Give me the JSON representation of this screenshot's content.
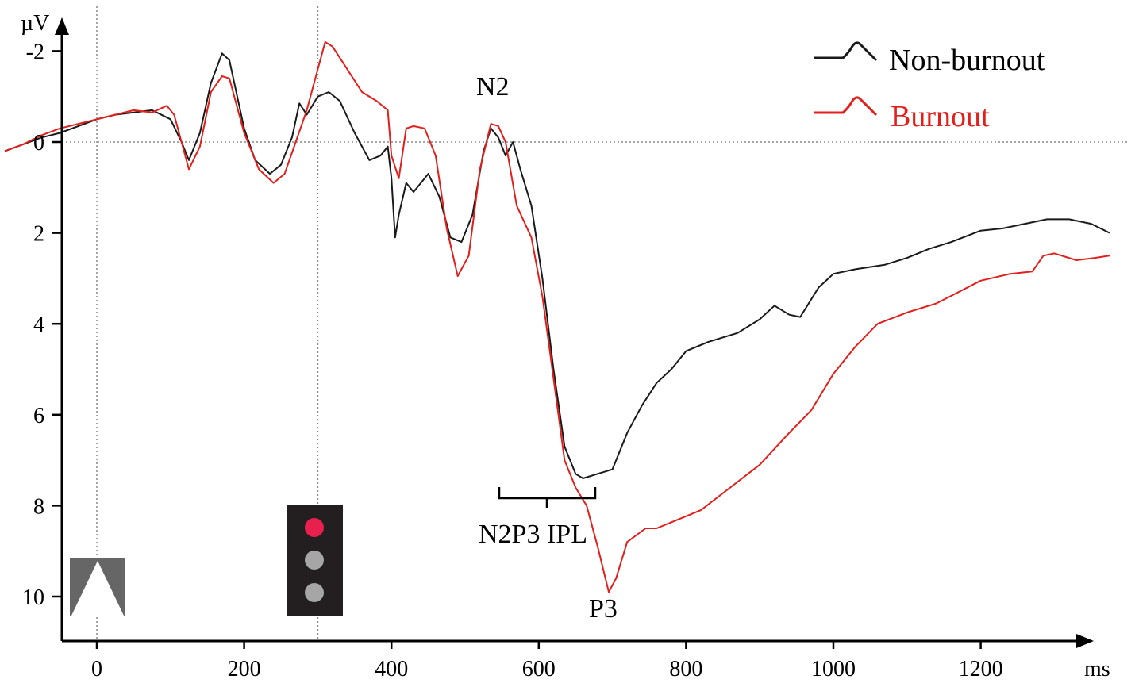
{
  "chart_data": {
    "type": "line",
    "xlabel": "ms",
    "ylabel": "µV",
    "x_ticks": [
      0,
      200,
      400,
      600,
      800,
      1000,
      1200
    ],
    "y_ticks": [
      -2,
      0,
      2,
      4,
      6,
      8,
      10
    ],
    "y_tick_labels": [
      "-2",
      "0",
      "2",
      "4",
      "6",
      "8",
      "10"
    ],
    "xlim": [
      -125,
      1375
    ],
    "ylim": [
      -2.7,
      11.2
    ],
    "y_inverted": true,
    "reference_lines": [
      {
        "axis": "x",
        "value": 0
      },
      {
        "axis": "x",
        "value": 300
      },
      {
        "axis": "y",
        "value": 0
      }
    ],
    "legend": {
      "position": "top-right"
    },
    "series": [
      {
        "name": "Non-burnout",
        "color": "#1a1a1a",
        "points": [
          [
            -125,
            0.2
          ],
          [
            -100,
            0.05
          ],
          [
            -75,
            -0.1
          ],
          [
            -50,
            -0.2
          ],
          [
            -25,
            -0.35
          ],
          [
            0,
            -0.5
          ],
          [
            25,
            -0.6
          ],
          [
            50,
            -0.65
          ],
          [
            75,
            -0.7
          ],
          [
            100,
            -0.5
          ],
          [
            115,
            0
          ],
          [
            125,
            0.4
          ],
          [
            140,
            -0.2
          ],
          [
            155,
            -1.3
          ],
          [
            170,
            -1.95
          ],
          [
            180,
            -1.8
          ],
          [
            200,
            -0.3
          ],
          [
            215,
            0.4
          ],
          [
            235,
            0.7
          ],
          [
            250,
            0.5
          ],
          [
            265,
            -0.1
          ],
          [
            275,
            -0.85
          ],
          [
            285,
            -0.6
          ],
          [
            300,
            -1.0
          ],
          [
            315,
            -1.1
          ],
          [
            330,
            -0.9
          ],
          [
            350,
            -0.2
          ],
          [
            370,
            0.4
          ],
          [
            385,
            0.3
          ],
          [
            395,
            0.1
          ],
          [
            400,
            0.8
          ],
          [
            405,
            2.1
          ],
          [
            410,
            1.6
          ],
          [
            420,
            0.9
          ],
          [
            430,
            1.1
          ],
          [
            440,
            0.9
          ],
          [
            450,
            0.7
          ],
          [
            465,
            1.2
          ],
          [
            480,
            2.1
          ],
          [
            495,
            2.2
          ],
          [
            510,
            1.6
          ],
          [
            525,
            0.2
          ],
          [
            535,
            -0.3
          ],
          [
            545,
            -0.1
          ],
          [
            555,
            0.3
          ],
          [
            565,
            0
          ],
          [
            575,
            0.6
          ],
          [
            590,
            1.4
          ],
          [
            605,
            3.0
          ],
          [
            620,
            5.0
          ],
          [
            635,
            6.7
          ],
          [
            650,
            7.3
          ],
          [
            660,
            7.4
          ],
          [
            680,
            7.3
          ],
          [
            700,
            7.2
          ],
          [
            720,
            6.4
          ],
          [
            740,
            5.8
          ],
          [
            760,
            5.3
          ],
          [
            780,
            5.0
          ],
          [
            800,
            4.6
          ],
          [
            830,
            4.4
          ],
          [
            870,
            4.2
          ],
          [
            900,
            3.9
          ],
          [
            920,
            3.6
          ],
          [
            940,
            3.8
          ],
          [
            955,
            3.85
          ],
          [
            980,
            3.2
          ],
          [
            1000,
            2.9
          ],
          [
            1030,
            2.8
          ],
          [
            1070,
            2.7
          ],
          [
            1100,
            2.55
          ],
          [
            1130,
            2.35
          ],
          [
            1160,
            2.2
          ],
          [
            1200,
            1.95
          ],
          [
            1230,
            1.9
          ],
          [
            1260,
            1.8
          ],
          [
            1290,
            1.7
          ],
          [
            1320,
            1.7
          ],
          [
            1350,
            1.8
          ],
          [
            1375,
            2.0
          ]
        ]
      },
      {
        "name": "Burnout",
        "color": "#e0201c",
        "points": [
          [
            -125,
            0.2
          ],
          [
            -100,
            0.05
          ],
          [
            -75,
            -0.15
          ],
          [
            -50,
            -0.3
          ],
          [
            -25,
            -0.4
          ],
          [
            0,
            -0.5
          ],
          [
            25,
            -0.6
          ],
          [
            50,
            -0.7
          ],
          [
            75,
            -0.65
          ],
          [
            95,
            -0.8
          ],
          [
            105,
            -0.6
          ],
          [
            115,
            0
          ],
          [
            125,
            0.6
          ],
          [
            140,
            0.1
          ],
          [
            155,
            -1.1
          ],
          [
            170,
            -1.45
          ],
          [
            180,
            -1.4
          ],
          [
            200,
            -0.2
          ],
          [
            220,
            0.6
          ],
          [
            240,
            0.9
          ],
          [
            255,
            0.7
          ],
          [
            270,
            0
          ],
          [
            285,
            -0.7
          ],
          [
            300,
            -1.6
          ],
          [
            310,
            -2.2
          ],
          [
            320,
            -2.1
          ],
          [
            340,
            -1.6
          ],
          [
            360,
            -1.1
          ],
          [
            380,
            -0.9
          ],
          [
            395,
            -0.7
          ],
          [
            400,
            0.3
          ],
          [
            410,
            0.8
          ],
          [
            420,
            -0.3
          ],
          [
            430,
            -0.35
          ],
          [
            445,
            -0.3
          ],
          [
            460,
            0.3
          ],
          [
            475,
            1.9
          ],
          [
            490,
            2.95
          ],
          [
            505,
            2.5
          ],
          [
            520,
            0.6
          ],
          [
            535,
            -0.4
          ],
          [
            545,
            -0.35
          ],
          [
            555,
            0
          ],
          [
            570,
            1.4
          ],
          [
            590,
            2.1
          ],
          [
            605,
            3.4
          ],
          [
            620,
            5.2
          ],
          [
            635,
            7.0
          ],
          [
            650,
            7.6
          ],
          [
            665,
            8.0
          ],
          [
            680,
            8.9
          ],
          [
            695,
            9.9
          ],
          [
            705,
            9.6
          ],
          [
            720,
            8.8
          ],
          [
            745,
            8.5
          ],
          [
            760,
            8.5
          ],
          [
            790,
            8.3
          ],
          [
            820,
            8.1
          ],
          [
            860,
            7.6
          ],
          [
            900,
            7.1
          ],
          [
            940,
            6.4
          ],
          [
            970,
            5.9
          ],
          [
            1000,
            5.1
          ],
          [
            1030,
            4.5
          ],
          [
            1060,
            4.0
          ],
          [
            1100,
            3.75
          ],
          [
            1140,
            3.55
          ],
          [
            1170,
            3.3
          ],
          [
            1200,
            3.05
          ],
          [
            1240,
            2.9
          ],
          [
            1270,
            2.85
          ],
          [
            1285,
            2.5
          ],
          [
            1300,
            2.45
          ],
          [
            1330,
            2.6
          ],
          [
            1355,
            2.55
          ],
          [
            1375,
            2.5
          ]
        ]
      }
    ],
    "annotations": [
      {
        "text": "N2",
        "x": 540,
        "y": -1.2
      },
      {
        "text": "N2P3 IPL",
        "x": 610,
        "y": 9.3
      },
      {
        "text": "P3",
        "x": 690,
        "y": 10.9
      }
    ]
  }
}
